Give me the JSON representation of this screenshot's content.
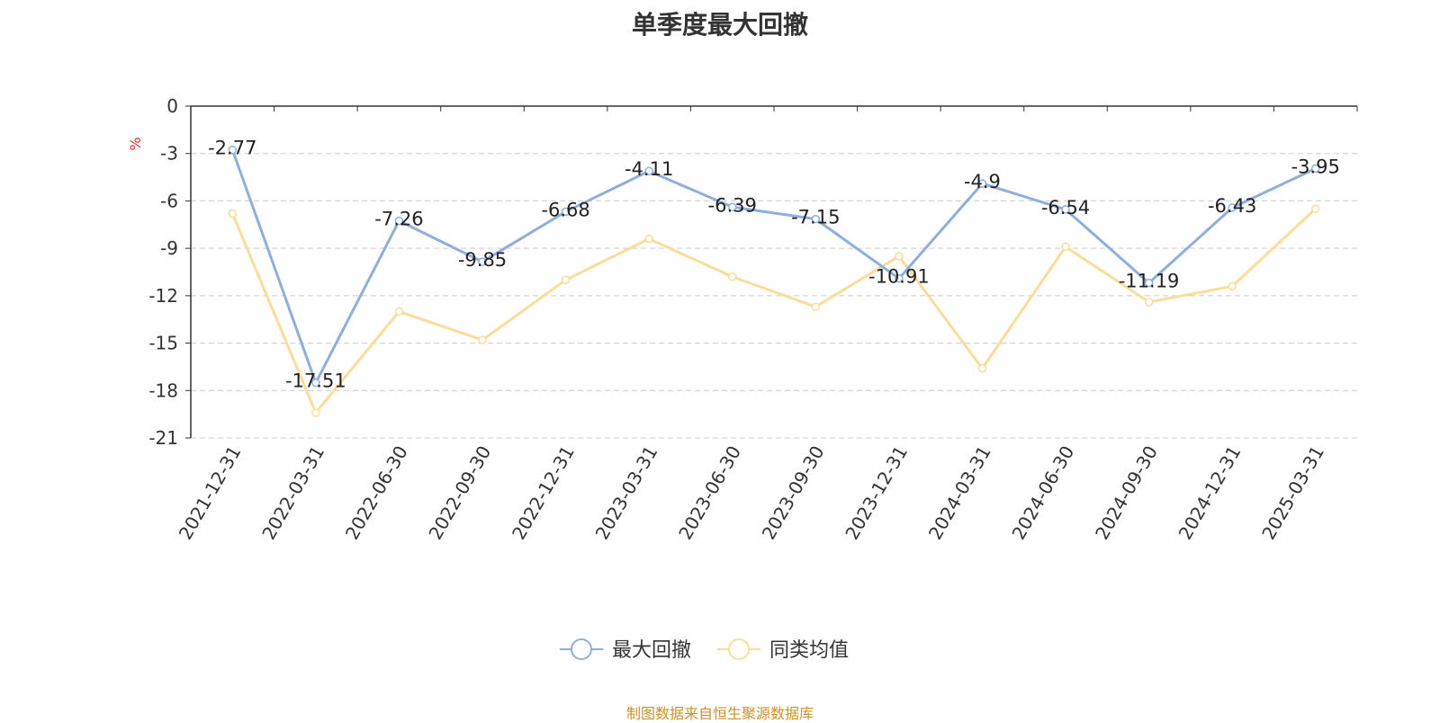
{
  "chart_data": {
    "type": "line",
    "title": "单季度最大回撤",
    "ylabel": "%",
    "ylim": [
      -21,
      0
    ],
    "yticks": [
      0,
      -3,
      -6,
      -9,
      -12,
      -15,
      -18,
      -21
    ],
    "categories": [
      "2021-12-31",
      "2022-03-31",
      "2022-06-30",
      "2022-09-30",
      "2022-12-31",
      "2023-03-31",
      "2023-06-30",
      "2023-09-30",
      "2023-12-31",
      "2024-03-31",
      "2024-06-30",
      "2024-09-30",
      "2024-12-31",
      "2025-03-31"
    ],
    "series": [
      {
        "name": "最大回撤",
        "color": "#8eaedb",
        "labels": true,
        "values": [
          -2.77,
          -17.51,
          -7.26,
          -9.85,
          -6.68,
          -4.11,
          -6.39,
          -7.15,
          -10.91,
          -4.9,
          -6.54,
          -11.19,
          -6.43,
          -3.95
        ]
      },
      {
        "name": "同类均值",
        "color": "#fbdc9b",
        "labels": false,
        "values": [
          -6.8,
          -19.4,
          -13.0,
          -14.8,
          -11.0,
          -8.4,
          -10.8,
          -12.7,
          -9.5,
          -16.6,
          -8.9,
          -12.4,
          -11.4,
          -6.5
        ]
      }
    ],
    "grid": "horizontal-dashed",
    "legend": "bottom-center"
  },
  "source": "制图数据来自恒生聚源数据库"
}
